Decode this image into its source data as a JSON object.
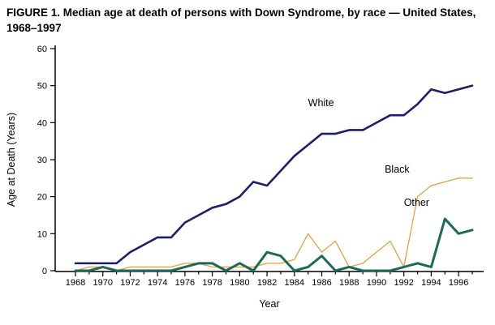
{
  "title": "FIGURE 1. Median age at death of persons with Down Syndrome, by race — United States, 1968–1997",
  "chart_data": {
    "type": "line",
    "title": "FIGURE 1. Median age at death of persons with Down Syndrome, by race — United States, 1968–1997",
    "xlabel": "Year",
    "ylabel": "Age at Death (Years)",
    "ylim": [
      0,
      60
    ],
    "yticks": [
      0,
      10,
      20,
      30,
      40,
      50,
      60
    ],
    "xtick_step": 2,
    "grid": false,
    "legend_position": "inline-labels",
    "x": [
      1968,
      1969,
      1970,
      1971,
      1972,
      1973,
      1974,
      1975,
      1976,
      1977,
      1978,
      1979,
      1980,
      1981,
      1982,
      1983,
      1984,
      1985,
      1986,
      1987,
      1988,
      1989,
      1990,
      1991,
      1992,
      1993,
      1994,
      1995,
      1996,
      1997
    ],
    "series": [
      {
        "name": "Black",
        "color": "#e0a33c",
        "width": 1.3,
        "values": [
          0,
          1,
          1,
          0,
          1,
          1,
          1,
          1,
          2,
          2,
          1,
          1,
          1,
          1,
          2,
          2,
          3,
          10,
          5,
          8,
          1,
          2,
          5,
          8,
          1,
          20,
          23,
          24,
          25,
          25
        ]
      },
      {
        "name": "Other",
        "color": "#1e6a5a",
        "width": 3,
        "values": [
          0,
          0,
          1,
          0,
          0,
          0,
          0,
          0,
          1,
          2,
          2,
          0,
          2,
          0,
          5,
          4,
          0,
          1,
          4,
          0,
          1,
          0,
          0,
          0,
          1,
          2,
          1,
          14,
          10,
          11
        ]
      },
      {
        "name": "White",
        "color": "#1b1f6b",
        "width": 2.6,
        "values": [
          2,
          2,
          2,
          2,
          5,
          7,
          9,
          9,
          13,
          15,
          17,
          18,
          20,
          24,
          23,
          27,
          31,
          34,
          37,
          37,
          38,
          38,
          40,
          42,
          42,
          45,
          49,
          48,
          49,
          50
        ]
      }
    ],
    "annotations": [
      {
        "text": "White",
        "year": 1985.0,
        "value": 44.5
      },
      {
        "text": "Black",
        "year": 1990.6,
        "value": 26.5
      },
      {
        "text": "Other",
        "year": 1992.0,
        "value": 17.5
      }
    ]
  }
}
